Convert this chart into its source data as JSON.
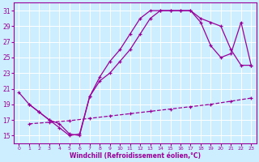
{
  "line1_x": [
    0,
    1,
    2,
    3,
    4,
    5,
    6,
    7,
    8,
    9,
    10,
    11,
    12,
    13,
    14,
    15,
    16,
    17,
    18,
    19,
    20,
    21,
    22,
    23
  ],
  "line1_y": [
    20.5,
    19.0,
    18.0,
    17.0,
    16.5,
    15.2,
    15.0,
    20.0,
    22.5,
    24.5,
    26.0,
    28.0,
    30.0,
    31.0,
    31.0,
    31.0,
    31.0,
    31.0,
    29.5,
    26.5,
    25.0,
    25.5,
    29.5,
    24.0
  ],
  "line2_x": [
    1,
    2,
    3,
    4,
    5,
    6,
    7,
    8,
    9,
    10,
    11,
    12,
    13,
    14,
    15,
    16,
    17,
    18,
    19,
    20,
    21,
    22,
    23
  ],
  "line2_y": [
    19.0,
    18.0,
    17.0,
    16.0,
    15.0,
    15.2,
    20.0,
    22.0,
    23.0,
    24.5,
    26.0,
    28.0,
    30.0,
    31.0,
    31.0,
    31.0,
    31.0,
    30.0,
    29.5,
    29.0,
    26.0,
    24.0,
    24.0
  ],
  "line3_x": [
    1,
    3,
    5,
    7,
    9,
    11,
    13,
    15,
    17,
    19,
    21,
    23
  ],
  "line3_y": [
    16.5,
    16.7,
    16.9,
    17.2,
    17.5,
    17.8,
    18.1,
    18.4,
    18.7,
    19.0,
    19.4,
    19.8
  ],
  "color": "#990099",
  "bg_color": "#cceeff",
  "grid_color": "#ffffff",
  "xlabel": "Windchill (Refroidissement éolien,°C)",
  "xlim": [
    -0.5,
    23.5
  ],
  "ylim": [
    14.0,
    32.0
  ],
  "yticks": [
    15,
    17,
    19,
    21,
    23,
    25,
    27,
    29,
    31
  ],
  "xticks": [
    0,
    1,
    2,
    3,
    4,
    5,
    6,
    7,
    8,
    9,
    10,
    11,
    12,
    13,
    14,
    15,
    16,
    17,
    18,
    19,
    20,
    21,
    22,
    23
  ]
}
